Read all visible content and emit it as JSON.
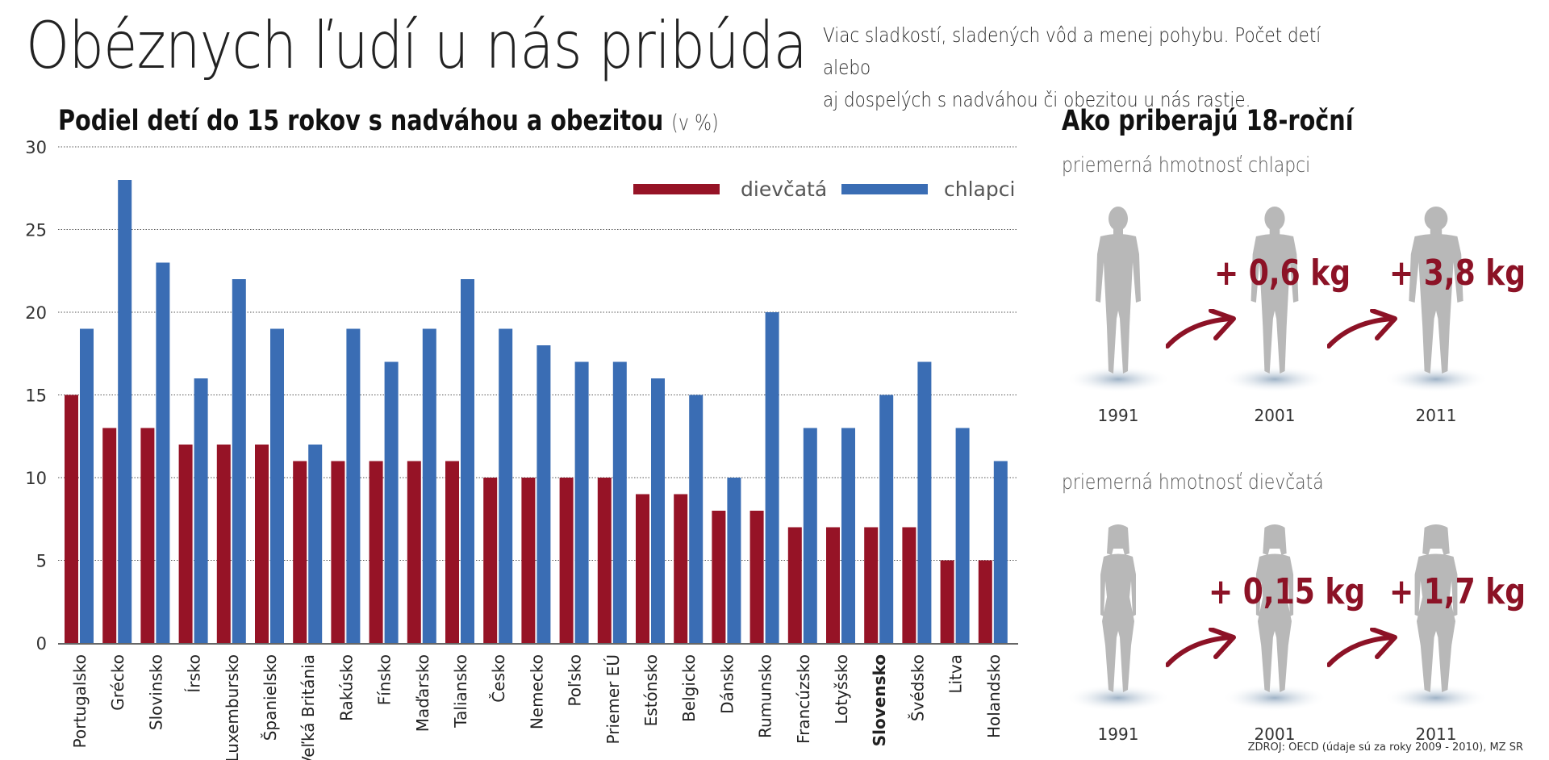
{
  "header": {
    "title": "Obéznych ľudí u nás pribúda",
    "subtitle_line1": "Viac sladkostí, sladených vôd a menej pohybu. Počet detí alebo",
    "subtitle_line2": "aj dospelých s nadváhou či obezitou u nás rastie."
  },
  "chart_data": {
    "type": "bar",
    "title": "Podiel detí do 15 rokov s nadváhou a obezitou",
    "unit_label": "(v %)",
    "xlabel": "",
    "ylabel": "",
    "ylim": [
      0,
      30
    ],
    "yticks": [
      0,
      5,
      10,
      15,
      20,
      25,
      30
    ],
    "grid": true,
    "legend_position": "top-right",
    "highlighted_category": "Slovensko",
    "categories": [
      "Portugalsko",
      "Grécko",
      "Slovinsko",
      "Írsko",
      "Luxembursko",
      "Španielsko",
      "Veľká Británia",
      "Rakúsko",
      "Fínsko",
      "Maďarsko",
      "Taliansko",
      "Česko",
      "Nemecko",
      "Poľsko",
      "Priemer EÚ",
      "Estónsko",
      "Belgicko",
      "Dánsko",
      "Rumunsko",
      "Francúzsko",
      "Lotyšsko",
      "Slovensko",
      "Švédsko",
      "Litva",
      "Holandsko"
    ],
    "series": [
      {
        "name": "dievčatá",
        "color": "#961326",
        "values": [
          15,
          13,
          13,
          12,
          12,
          12,
          11,
          11,
          11,
          11,
          11,
          10,
          10,
          10,
          10,
          9,
          9,
          8,
          8,
          7,
          7,
          7,
          7,
          5,
          5
        ]
      },
      {
        "name": "chlapci",
        "color": "#3a6db4",
        "values": [
          19,
          28,
          23,
          16,
          22,
          19,
          12,
          19,
          17,
          19,
          22,
          19,
          18,
          17,
          17,
          16,
          15,
          10,
          20,
          13,
          13,
          15,
          17,
          13,
          11
        ]
      }
    ]
  },
  "weight_panel": {
    "title": "Ako priberajú 18-roční",
    "boys": {
      "label": "priemerná hmotnosť chlapci",
      "years": [
        "1991",
        "2001",
        "2011"
      ],
      "gains": [
        "+ 0,6 kg",
        "+ 3,8 kg"
      ]
    },
    "girls": {
      "label": "priemerná hmotnosť dievčatá",
      "years": [
        "1991",
        "2001",
        "2011"
      ],
      "gains": [
        "+ 0,15 kg",
        "+ 1,7 kg"
      ]
    },
    "figure_color": "#b8b8b8",
    "accent_color": "#8c1226"
  },
  "source": "ZDROJ: OECD (údaje sú za roky 2009 - 2010), MZ SR"
}
